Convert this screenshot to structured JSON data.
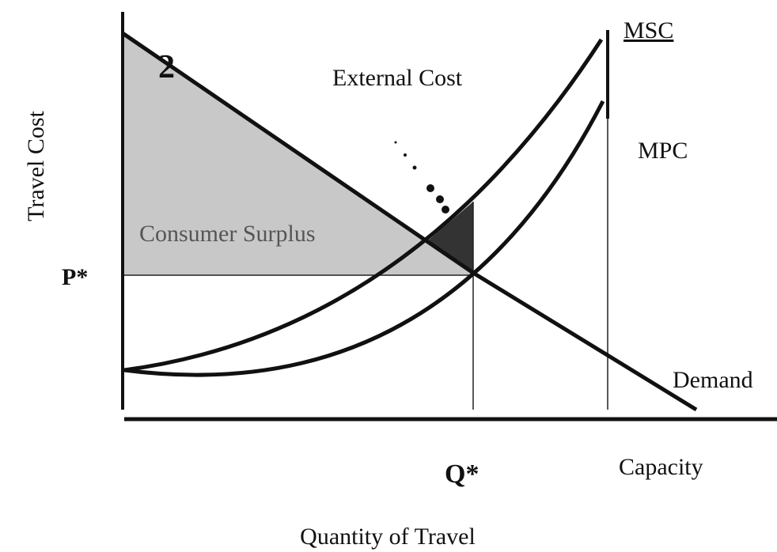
{
  "labels": {
    "y_axis": "Travel Cost",
    "x_axis": "Quantity of Travel",
    "msc": "MSC",
    "mpc": "MPC",
    "external_cost": "External Cost",
    "consumer_surplus": "Consumer Surplus",
    "price": "P*",
    "quantity": "Q*",
    "demand": "Demand",
    "capacity": "Capacity",
    "demand_marker": "2"
  }
}
